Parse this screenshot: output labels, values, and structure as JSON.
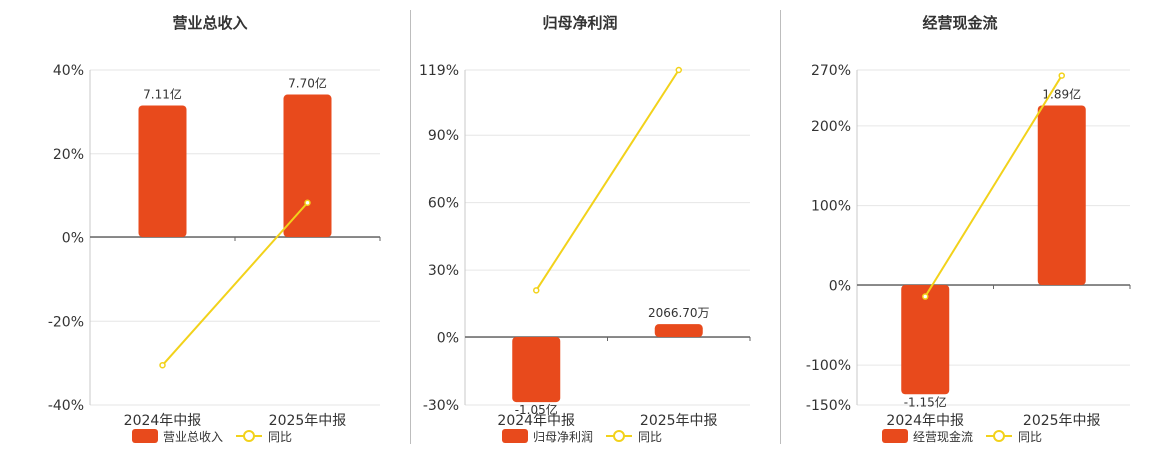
{
  "colors": {
    "bar": "#E84A1C",
    "line": "#F2D21B",
    "axis": "#666666",
    "grid": "#e6e6e6",
    "text": "#333333"
  },
  "chart_data": [
    {
      "type": "bar",
      "title": "营业总收入",
      "categories": [
        "2024年中报",
        "2025年中报"
      ],
      "series": [
        {
          "name": "营业总收入",
          "values": [
            7.11,
            7.7
          ],
          "labels": [
            "7.11亿",
            "7.70亿"
          ]
        },
        {
          "name": "同比",
          "type": "line",
          "values": [
            -30.5,
            8.3
          ]
        }
      ],
      "y2": {
        "ylim": [
          -40,
          40
        ],
        "ticks": [
          "40%",
          "20%",
          "0%",
          "-20%",
          "-40%"
        ]
      },
      "grid": true,
      "legend": "bottom"
    },
    {
      "type": "bar",
      "title": "归母净利润",
      "categories": [
        "2024年中报",
        "2025年中报"
      ],
      "series": [
        {
          "name": "归母净利润",
          "values": [
            -1.05,
            0.20667
          ],
          "labels": [
            "-1.05亿",
            "2066.70万"
          ]
        },
        {
          "name": "同比",
          "type": "line",
          "values": [
            21,
            119
          ]
        }
      ],
      "y2": {
        "ylim": [
          -30,
          119
        ],
        "ticks": [
          "119%",
          "90%",
          "60%",
          "30%",
          "0%",
          "-30%"
        ]
      },
      "grid": true,
      "legend": "bottom"
    },
    {
      "type": "bar",
      "title": "经营现金流",
      "categories": [
        "2024年中报",
        "2025年中报"
      ],
      "series": [
        {
          "name": "经营现金流",
          "values": [
            -1.15,
            1.89
          ],
          "labels": [
            "-1.15亿",
            "1.89亿"
          ]
        },
        {
          "name": "同比",
          "type": "line",
          "values": [
            -14,
            263
          ]
        }
      ],
      "y2": {
        "ylim": [
          -150,
          270
        ],
        "ticks": [
          "270%",
          "200%",
          "100%",
          "0%",
          "-100%",
          "-150%"
        ]
      },
      "grid": true,
      "legend": "bottom"
    }
  ]
}
